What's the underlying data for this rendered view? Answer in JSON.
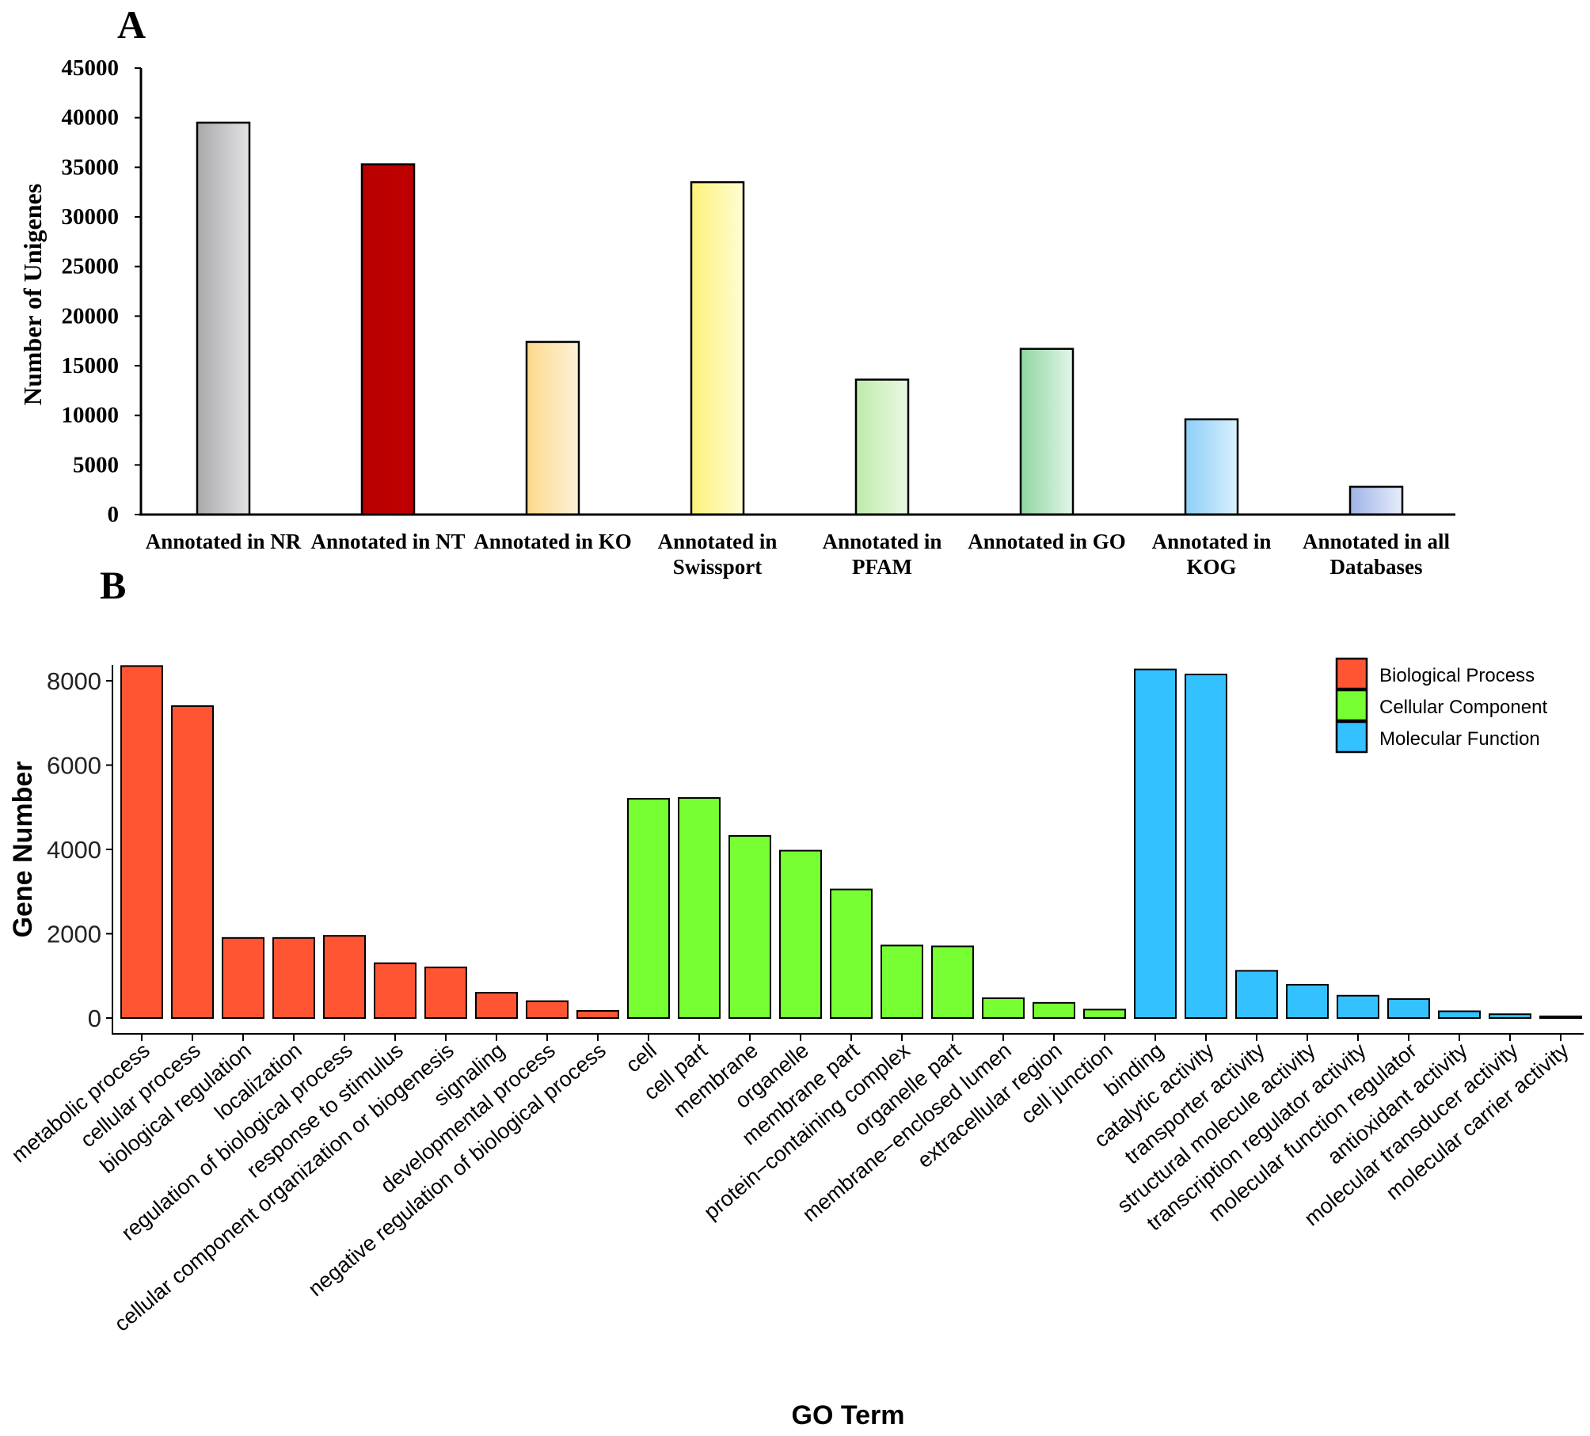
{
  "panel_a": {
    "label": "A",
    "chart_data": {
      "type": "bar",
      "title": "",
      "xlabel": "",
      "ylabel": "Number of Unigenes",
      "ylim": [
        0,
        45000
      ],
      "yticks": [
        0,
        5000,
        10000,
        15000,
        20000,
        25000,
        30000,
        35000,
        40000,
        45000
      ],
      "categories": [
        [
          "Annotated in NR"
        ],
        [
          "Annotated in NT"
        ],
        [
          "Annotated in KO"
        ],
        [
          "Annotated in",
          "Swissport"
        ],
        [
          "Annotated in",
          "PFAM"
        ],
        [
          "Annotated in GO"
        ],
        [
          "Annotated in",
          "KOG"
        ],
        [
          "Annotated in all",
          "Databases"
        ]
      ],
      "values": [
        39500,
        35300,
        17400,
        33500,
        13600,
        16700,
        9600,
        2800
      ],
      "colors": [
        [
          "#a9a9ab",
          "#e2e2e4"
        ],
        [
          "#b80000",
          "#c00000"
        ],
        [
          "#fcd98c",
          "#fff2d8"
        ],
        [
          "#fdf27a",
          "#fffdd2"
        ],
        [
          "#bfebab",
          "#eaf9e2"
        ],
        [
          "#8fd6a2",
          "#e3f5e8"
        ],
        [
          "#8ccff7",
          "#d9f0fd"
        ],
        [
          "#9fb3e6",
          "#e6ecfa"
        ]
      ],
      "grid": false
    }
  },
  "panel_b": {
    "label": "B",
    "chart_data": {
      "type": "bar",
      "title": "",
      "xlabel": "GO Term",
      "ylabel": "Gene Number",
      "ylim": [
        0,
        8700
      ],
      "yticks": [
        0,
        2000,
        4000,
        6000,
        8000
      ],
      "grid": false,
      "legend_position": "top-right",
      "legend": [
        {
          "name": "Biological Process",
          "color": "#ff5533"
        },
        {
          "name": "Cellular Component",
          "color": "#77ff33"
        },
        {
          "name": "Molecular Function",
          "color": "#33c1ff"
        }
      ],
      "categories": [
        "metabolic process",
        "cellular process",
        "biological regulation",
        "localization",
        "regulation of biological process",
        "response to stimulus",
        "cellular component organization or biogenesis",
        "signaling",
        "developmental process",
        "negative regulation of biological process",
        "cell",
        "cell part",
        "membrane",
        "organelle",
        "membrane part",
        "protein−containing complex",
        "organelle part",
        "membrane−enclosed lumen",
        "extracellular region",
        "cell junction",
        "binding",
        "catalytic activity",
        "transporter activity",
        "structural molecule activity",
        "transcription regulator activity",
        "molecular function regulator",
        "antioxidant activity",
        "molecular transducer activity",
        "molecular carrier activity"
      ],
      "groups": [
        0,
        0,
        0,
        0,
        0,
        0,
        0,
        0,
        0,
        0,
        1,
        1,
        1,
        1,
        1,
        1,
        1,
        1,
        1,
        1,
        2,
        2,
        2,
        2,
        2,
        2,
        2,
        2,
        2
      ],
      "values": [
        8350,
        7400,
        1900,
        1900,
        1950,
        1300,
        1200,
        600,
        400,
        170,
        5200,
        5220,
        4320,
        3970,
        3050,
        1720,
        1700,
        470,
        360,
        200,
        8270,
        8150,
        1120,
        790,
        530,
        450,
        160,
        90,
        40
      ]
    }
  }
}
